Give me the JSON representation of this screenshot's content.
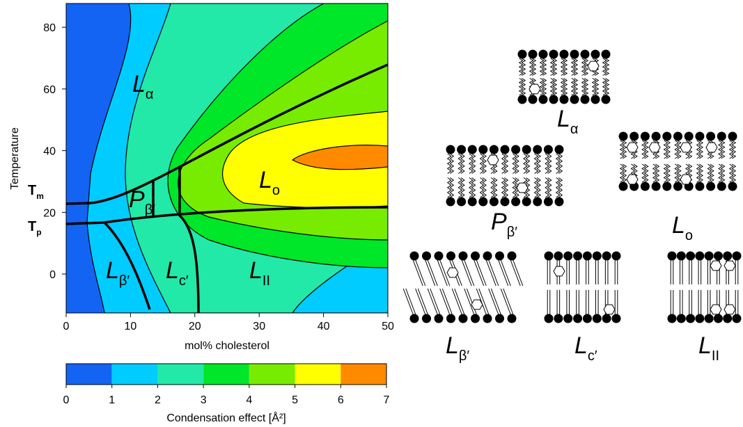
{
  "plot": {
    "xlabel": "mol% cholesterol",
    "ylabel": "Temperature",
    "xlim": [
      0,
      50
    ],
    "ylim": [
      -12.6,
      87.7
    ],
    "xticks": [
      0,
      10,
      20,
      30,
      40,
      50
    ],
    "yticks": [
      0,
      20,
      40,
      60,
      80
    ],
    "temperature_marks": [
      {
        "main": "T",
        "sub": "m"
      },
      {
        "main": "T",
        "sub": "p"
      }
    ],
    "phase_labels": [
      {
        "main": "L",
        "sub": "α"
      },
      {
        "main": "L",
        "sub": "o"
      },
      {
        "main": "P",
        "sub": "β′"
      },
      {
        "main": "L",
        "sub": "β′"
      },
      {
        "main": "L",
        "sub": "c′"
      },
      {
        "main": "L",
        "sub": "II"
      }
    ]
  },
  "colorbar": {
    "label": "Condensation effect [Å²]",
    "ticks": [
      0,
      1,
      2,
      3,
      4,
      5,
      6,
      7
    ],
    "colors": [
      "#1464f4",
      "#00ccff",
      "#22e8a8",
      "#00e628",
      "#77ec00",
      "#ffff00",
      "#ff8a00"
    ]
  },
  "schematics": [
    {
      "main": "L",
      "sub": "α"
    },
    {
      "main": "L",
      "sub": "o"
    },
    {
      "main": "P",
      "sub": "β′"
    },
    {
      "main": "L",
      "sub": "β′"
    },
    {
      "main": "L",
      "sub": "c′"
    },
    {
      "main": "L",
      "sub": "II"
    }
  ]
}
